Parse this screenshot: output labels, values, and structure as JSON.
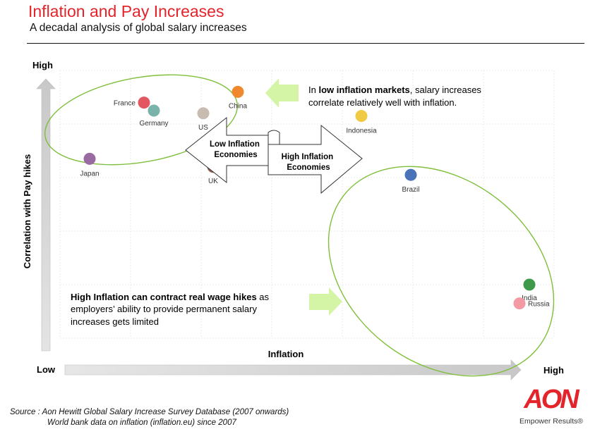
{
  "header": {
    "title": "Inflation and Pay Increases",
    "subtitle": "A decadal analysis of global salary increases"
  },
  "chart_data": {
    "type": "scatter",
    "xlabel": "Inflation",
    "ylabel": "Correlation with Pay hikes",
    "x_low_label": "Low",
    "x_high_label": "High",
    "y_high_label": "High",
    "xlim": [
      0,
      100
    ],
    "ylim": [
      0,
      100
    ],
    "grid": true,
    "points": [
      {
        "label": "France",
        "x": 17,
        "y": 88,
        "color": "#e35760"
      },
      {
        "label": "Germany",
        "x": 19,
        "y": 85,
        "color": "#7ab3aa"
      },
      {
        "label": "US",
        "x": 29,
        "y": 84,
        "color": "#c8bcb0"
      },
      {
        "label": "China",
        "x": 36,
        "y": 92,
        "color": "#f0882e"
      },
      {
        "label": "Japan",
        "x": 6,
        "y": 67,
        "color": "#9a6aa2"
      },
      {
        "label": "UK",
        "x": 31,
        "y": 64,
        "color": "#8c6050"
      },
      {
        "label": "Indonesia",
        "x": 61,
        "y": 83,
        "color": "#f0c945"
      },
      {
        "label": "Brazil",
        "x": 71,
        "y": 61,
        "color": "#4a72b8"
      },
      {
        "label": "India",
        "x": 95,
        "y": 20,
        "color": "#3e9a4a"
      },
      {
        "label": "Russia",
        "x": 93,
        "y": 13,
        "color": "#f49aa4"
      }
    ],
    "annotations": {
      "low_arrow_label": "Low Inflation Economies",
      "high_arrow_label": "High Inflation Economies",
      "note_top_bold": "low inflation markets",
      "note_top_prefix": "In ",
      "note_top_suffix": ", salary increases",
      "note_top_line2": "correlate relatively well with inflation.",
      "note_bottom_bold": "High Inflation can contract real wage hikes",
      "note_bottom_suffix": " as",
      "note_bottom_line2": "employers’ ability to provide permanent salary",
      "note_bottom_line3": "increases gets limited"
    }
  },
  "footer": {
    "source_line1": "Source : Aon Hewitt Global Salary Increase Survey Database (2007 onwards)",
    "source_line2": "World bank data on inflation (inflation.eu) since 2007",
    "logo_text": "AON",
    "tagline": "Empower Results®"
  },
  "colors": {
    "title": "#e3242b",
    "ellipse": "#7fbf3a",
    "green_arrow": "#d4f5a6",
    "axis_arrow": "#d0d0d0",
    "logo": "#e3242b"
  }
}
